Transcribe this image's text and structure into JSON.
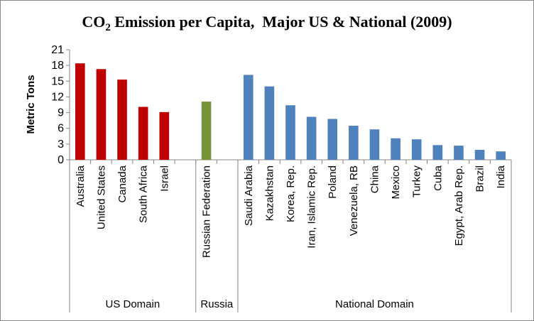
{
  "chart_data": {
    "type": "bar",
    "title": {
      "prefix": "CO",
      "subscript": "2",
      "rest": " Emission per Capita,  Major US & National (2009)"
    },
    "ylabel": "Metric Tons",
    "xlabel": "",
    "ylim": [
      0,
      21
    ],
    "yticks": [
      0,
      3,
      6,
      9,
      12,
      15,
      18,
      21
    ],
    "grid": false,
    "legend": "none",
    "categories": [
      "Australia",
      "United States",
      "Canada",
      "South Africa",
      "Israel",
      "Russian Federation",
      "Saudi Arabia",
      "Kazakhstan",
      "Korea, Rep.",
      "Iran, Islamic Rep.",
      "Poland",
      "Venezuela, RB",
      "China",
      "Mexico",
      "Turkey",
      "Cuba",
      "Egypt, Arab Rep.",
      "Brazil",
      "India"
    ],
    "groups": [
      {
        "name": "US Domain",
        "start": 0,
        "end": 4,
        "color": "#c00000",
        "values": [
          18.4,
          17.3,
          15.3,
          10.1,
          9.1
        ]
      },
      {
        "name": "Russia",
        "start": 5,
        "end": 5,
        "color": "#77933c",
        "values": [
          11.1
        ]
      },
      {
        "name": "National Domain",
        "start": 6,
        "end": 18,
        "color": "#4f81bd",
        "values": [
          16.2,
          14.0,
          10.4,
          8.2,
          7.8,
          6.5,
          5.8,
          4.1,
          3.9,
          2.8,
          2.7,
          1.9,
          1.6
        ]
      }
    ]
  }
}
